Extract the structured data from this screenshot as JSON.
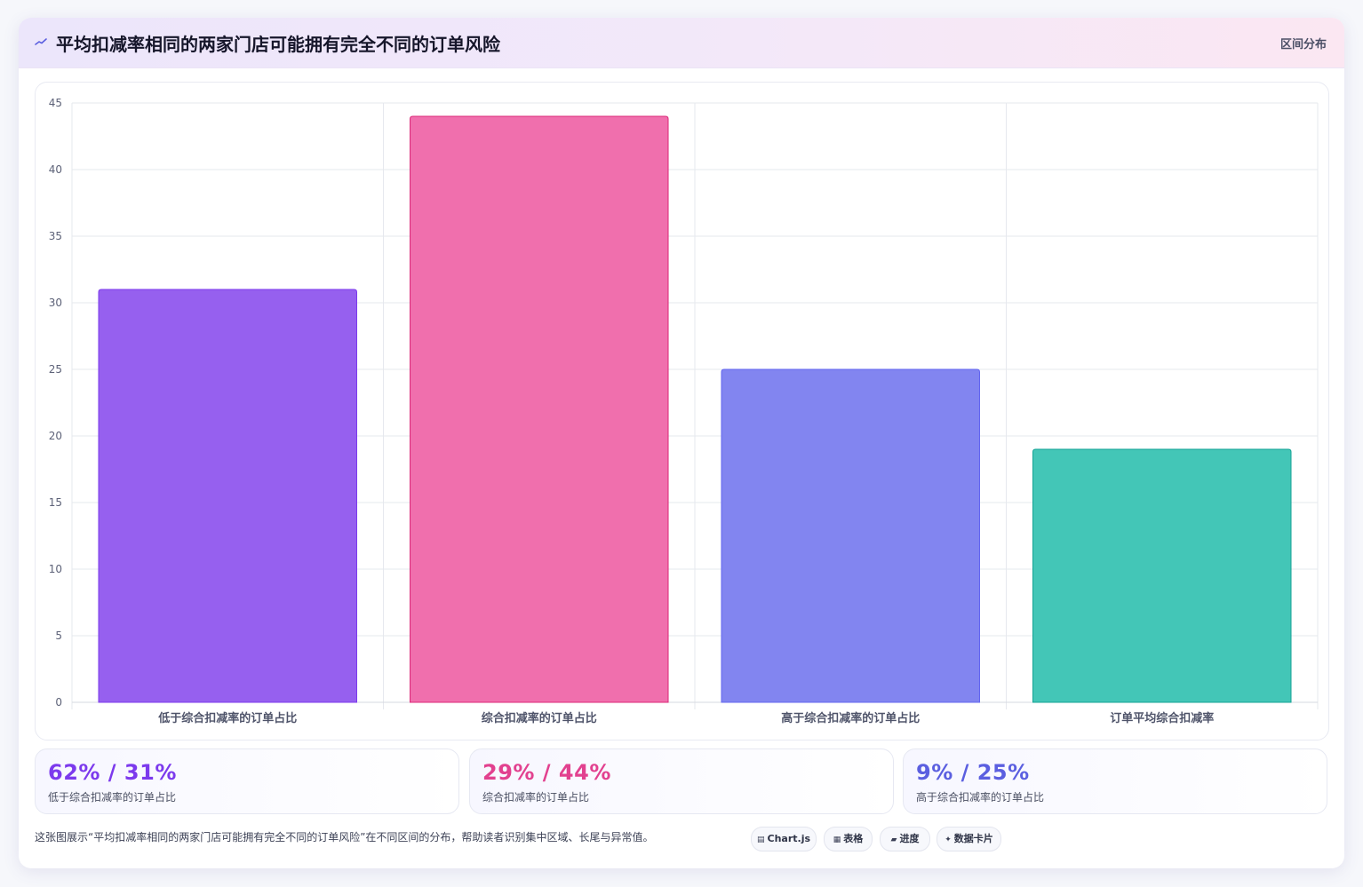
{
  "header": {
    "title": "平均扣减率相同的两家门店可能拥有完全不同的订单风险",
    "tag": "区间分布"
  },
  "chart_data": {
    "type": "bar",
    "categories": [
      "低于综合扣减率的订单占比",
      "综合扣减率的订单占比",
      "高于综合扣减率的订单占比",
      "订单平均综合扣减率"
    ],
    "values": [
      31,
      44,
      25,
      19
    ],
    "colors": [
      "#9660ef",
      "#f06fad",
      "#8285f0",
      "#43c6b7"
    ],
    "border_colors": [
      "#7c3aed",
      "#db2777",
      "#6366f1",
      "#14a394"
    ],
    "ylim": [
      0,
      45
    ],
    "yticks": [
      0,
      5,
      10,
      15,
      20,
      25,
      30,
      35,
      40,
      45
    ],
    "grid": true,
    "legend": "none",
    "title": "",
    "xlabel": "",
    "ylabel": ""
  },
  "stats": [
    {
      "value": "62% / 31%",
      "label": "低于综合扣减率的订单占比",
      "color": "#7c3aed"
    },
    {
      "value": "29% / 44%",
      "label": "综合扣减率的订单占比",
      "color": "#e2418f"
    },
    {
      "value": "9% / 25%",
      "label": "高于综合扣减率的订单占比",
      "color": "#5b5fe0"
    }
  ],
  "footer": {
    "text": "这张图展示“平均扣减率相同的两家门店可能拥有完全不同的订单风险”在不同区间的分布，帮助读者识别集中区域、长尾与异常值。"
  },
  "chips": [
    {
      "icon": "chart-icon",
      "label": "Chart.js"
    },
    {
      "icon": "table-icon",
      "label": "表格"
    },
    {
      "icon": "progress-icon",
      "label": "进度"
    },
    {
      "icon": "sparkle-icon",
      "label": "数据卡片"
    }
  ]
}
